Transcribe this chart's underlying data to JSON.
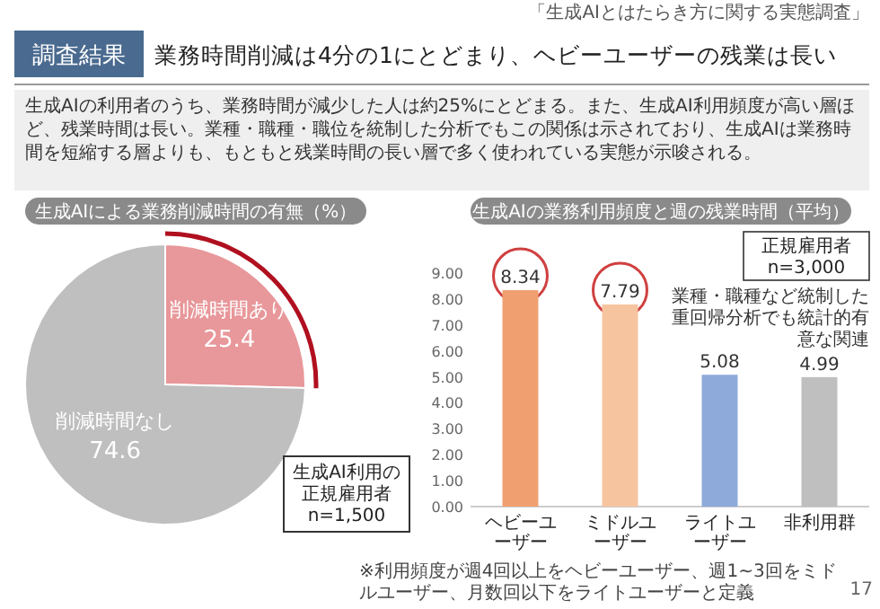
{
  "chart_data": [
    {
      "type": "pie",
      "title": "生成AIによる業務削減時間の有無（%）",
      "categories": [
        "削減時間あり",
        "削減時間なし"
      ],
      "values": [
        25.4,
        74.6
      ],
      "colors": [
        "#e8979a",
        "#bfbfbf"
      ],
      "data_labels": true,
      "annotations": [
        "「生成AIとはたらき方に関する実態調査」",
        "調査結果",
        "業務時間削減は4分の1にとどまり、ヘビーユーザーの残業は長い",
        "生成AIの利用者のうち、業務時間が減少した人は約25%にとどまる。また、生成AI利用頻度が高い層ほど、残業時間は長い。業種・職種・職位を統制した分析でもこの関係は示されており、生成AIは業務時間を短縮する層よりも、もともと残業時間の長い層で多く使われている実態が示唆される。",
        "生成AI利用の正規雇用者n=1,500"
      ]
    },
    {
      "type": "bar",
      "title": "生成AIの業務利用頻度と週の残業時間（平均）",
      "categories": [
        "ヘビーユーザー",
        "ミドルユーザー",
        "ライトユーザー",
        "非利用群"
      ],
      "values": [
        8.34,
        7.79,
        5.08,
        4.99
      ],
      "colors": [
        "#f0a070",
        "#f7c4a0",
        "#8eaadb",
        "#bfbfbf"
      ],
      "data_labels": true,
      "ylim": [
        0,
        9
      ],
      "yticks": [
        {
          "value": 0,
          "label": "0.00"
        },
        {
          "value": 1,
          "label": "1.00"
        },
        {
          "value": 2,
          "label": "2.00"
        },
        {
          "value": 3,
          "label": "3.00"
        },
        {
          "value": 4,
          "label": "4.00"
        },
        {
          "value": 5,
          "label": "5.00"
        },
        {
          "value": 6,
          "label": "6.00"
        },
        {
          "value": 7,
          "label": "7.00"
        },
        {
          "value": 8,
          "label": "8.00"
        },
        {
          "value": 9,
          "label": "9.00"
        }
      ],
      "annotations": [
        "正規雇用者n=3,000",
        "業種・職種など統制した重回帰分析でも統計的有意な関連",
        "※利用頻度が週4回以上をヘビーユーザー、週1~3回をミドルユーザー、月数回以下をライトユーザーと定義",
        "17"
      ]
    }
  ]
}
